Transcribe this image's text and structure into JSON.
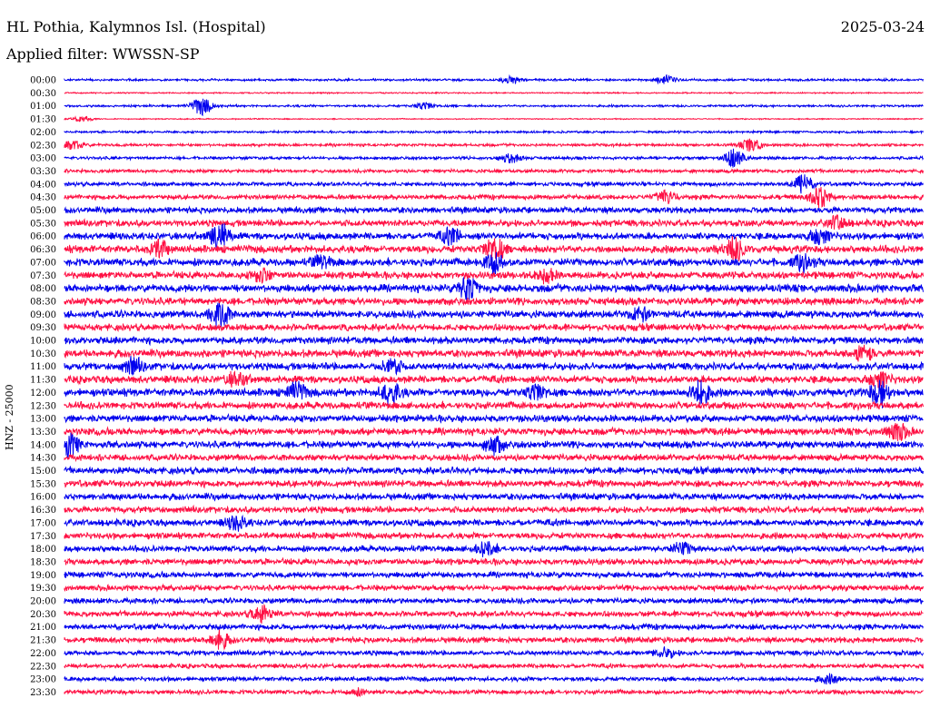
{
  "station_title": "HL Pothia, Kalymnos Isl. (Hospital)",
  "date": "2025-03-24",
  "filter_label": "Applied filter: WWSSN-SP",
  "y_axis_label": "HNZ - 25000",
  "colors": {
    "trace_a": "#0000ee",
    "trace_b": "#ff1144"
  },
  "chart_data": {
    "type": "line",
    "title": "HL Pothia, Kalymnos Isl. (Hospital)",
    "subtitle": "Applied filter: WWSSN-SP",
    "ylabel": "HNZ - 25000",
    "ytick_labels": [
      "00:00",
      "00:30",
      "01:00",
      "01:30",
      "02:00",
      "02:30",
      "03:00",
      "03:30",
      "04:00",
      "04:30",
      "05:00",
      "05:30",
      "06:00",
      "06:30",
      "07:00",
      "07:30",
      "08:00",
      "08:30",
      "09:00",
      "09:30",
      "10:00",
      "10:30",
      "11:00",
      "11:30",
      "12:00",
      "12:30",
      "13:00",
      "13:30",
      "14:00",
      "14:30",
      "15:00",
      "15:30",
      "16:00",
      "16:30",
      "17:00",
      "17:30",
      "18:00",
      "18:30",
      "19:00",
      "19:30",
      "20:00",
      "20:30",
      "21:00",
      "21:30",
      "22:00",
      "22:30",
      "23:00",
      "23:30"
    ],
    "trace_colors_alternate": [
      "#0000ee",
      "#ff1144"
    ],
    "noise_level_per_line": [
      1,
      0.6,
      1,
      0.5,
      1,
      1.3,
      1.4,
      1.6,
      1.8,
      2.2,
      2.8,
      3,
      3.2,
      3.4,
      3.5,
      3.2,
      3.6,
      3.4,
      3.4,
      3.1,
      3.3,
      3.5,
      3.3,
      3.4,
      3.5,
      3.3,
      3.2,
      3.3,
      3.2,
      3,
      3.1,
      3.1,
      3,
      2.9,
      3,
      2.8,
      2.8,
      2.8,
      2.7,
      2.6,
      2.5,
      2.6,
      2.6,
      2.6,
      2.2,
      2,
      2,
      2
    ],
    "bursts": [
      {
        "line": 0,
        "x": 0.52,
        "amp": 4
      },
      {
        "line": 0,
        "x": 0.7,
        "amp": 5
      },
      {
        "line": 2,
        "x": 0.16,
        "amp": 10
      },
      {
        "line": 2,
        "x": 0.42,
        "amp": 4
      },
      {
        "line": 3,
        "x": 0.02,
        "amp": 3
      },
      {
        "line": 5,
        "x": 0.01,
        "amp": 5
      },
      {
        "line": 5,
        "x": 0.8,
        "amp": 7
      },
      {
        "line": 6,
        "x": 0.52,
        "amp": 5
      },
      {
        "line": 6,
        "x": 0.78,
        "amp": 9
      },
      {
        "line": 8,
        "x": 0.86,
        "amp": 10
      },
      {
        "line": 9,
        "x": 0.7,
        "amp": 7
      },
      {
        "line": 9,
        "x": 0.88,
        "amp": 11
      },
      {
        "line": 11,
        "x": 0.9,
        "amp": 7
      },
      {
        "line": 12,
        "x": 0.18,
        "amp": 14
      },
      {
        "line": 12,
        "x": 0.45,
        "amp": 8
      },
      {
        "line": 12,
        "x": 0.88,
        "amp": 8
      },
      {
        "line": 13,
        "x": 0.11,
        "amp": 8
      },
      {
        "line": 13,
        "x": 0.5,
        "amp": 13
      },
      {
        "line": 13,
        "x": 0.78,
        "amp": 12
      },
      {
        "line": 14,
        "x": 0.3,
        "amp": 6
      },
      {
        "line": 14,
        "x": 0.5,
        "amp": 10
      },
      {
        "line": 14,
        "x": 0.86,
        "amp": 8
      },
      {
        "line": 15,
        "x": 0.23,
        "amp": 7
      },
      {
        "line": 15,
        "x": 0.56,
        "amp": 7
      },
      {
        "line": 16,
        "x": 0.47,
        "amp": 12
      },
      {
        "line": 18,
        "x": 0.18,
        "amp": 14
      },
      {
        "line": 18,
        "x": 0.67,
        "amp": 7
      },
      {
        "line": 21,
        "x": 0.93,
        "amp": 9
      },
      {
        "line": 22,
        "x": 0.08,
        "amp": 8
      },
      {
        "line": 22,
        "x": 0.38,
        "amp": 8
      },
      {
        "line": 23,
        "x": 0.2,
        "amp": 7
      },
      {
        "line": 23,
        "x": 0.95,
        "amp": 8
      },
      {
        "line": 24,
        "x": 0.27,
        "amp": 9
      },
      {
        "line": 24,
        "x": 0.38,
        "amp": 12
      },
      {
        "line": 24,
        "x": 0.55,
        "amp": 9
      },
      {
        "line": 24,
        "x": 0.74,
        "amp": 12
      },
      {
        "line": 24,
        "x": 0.95,
        "amp": 14
      },
      {
        "line": 27,
        "x": 0.97,
        "amp": 9
      },
      {
        "line": 28,
        "x": 0.005,
        "amp": 12
      },
      {
        "line": 28,
        "x": 0.5,
        "amp": 9
      },
      {
        "line": 34,
        "x": 0.2,
        "amp": 7
      },
      {
        "line": 36,
        "x": 0.49,
        "amp": 8
      },
      {
        "line": 36,
        "x": 0.72,
        "amp": 6
      },
      {
        "line": 41,
        "x": 0.23,
        "amp": 9
      },
      {
        "line": 43,
        "x": 0.18,
        "amp": 9
      },
      {
        "line": 44,
        "x": 0.7,
        "amp": 5
      },
      {
        "line": 46,
        "x": 0.89,
        "amp": 4
      },
      {
        "line": 47,
        "x": 0.34,
        "amp": 3
      }
    ]
  }
}
